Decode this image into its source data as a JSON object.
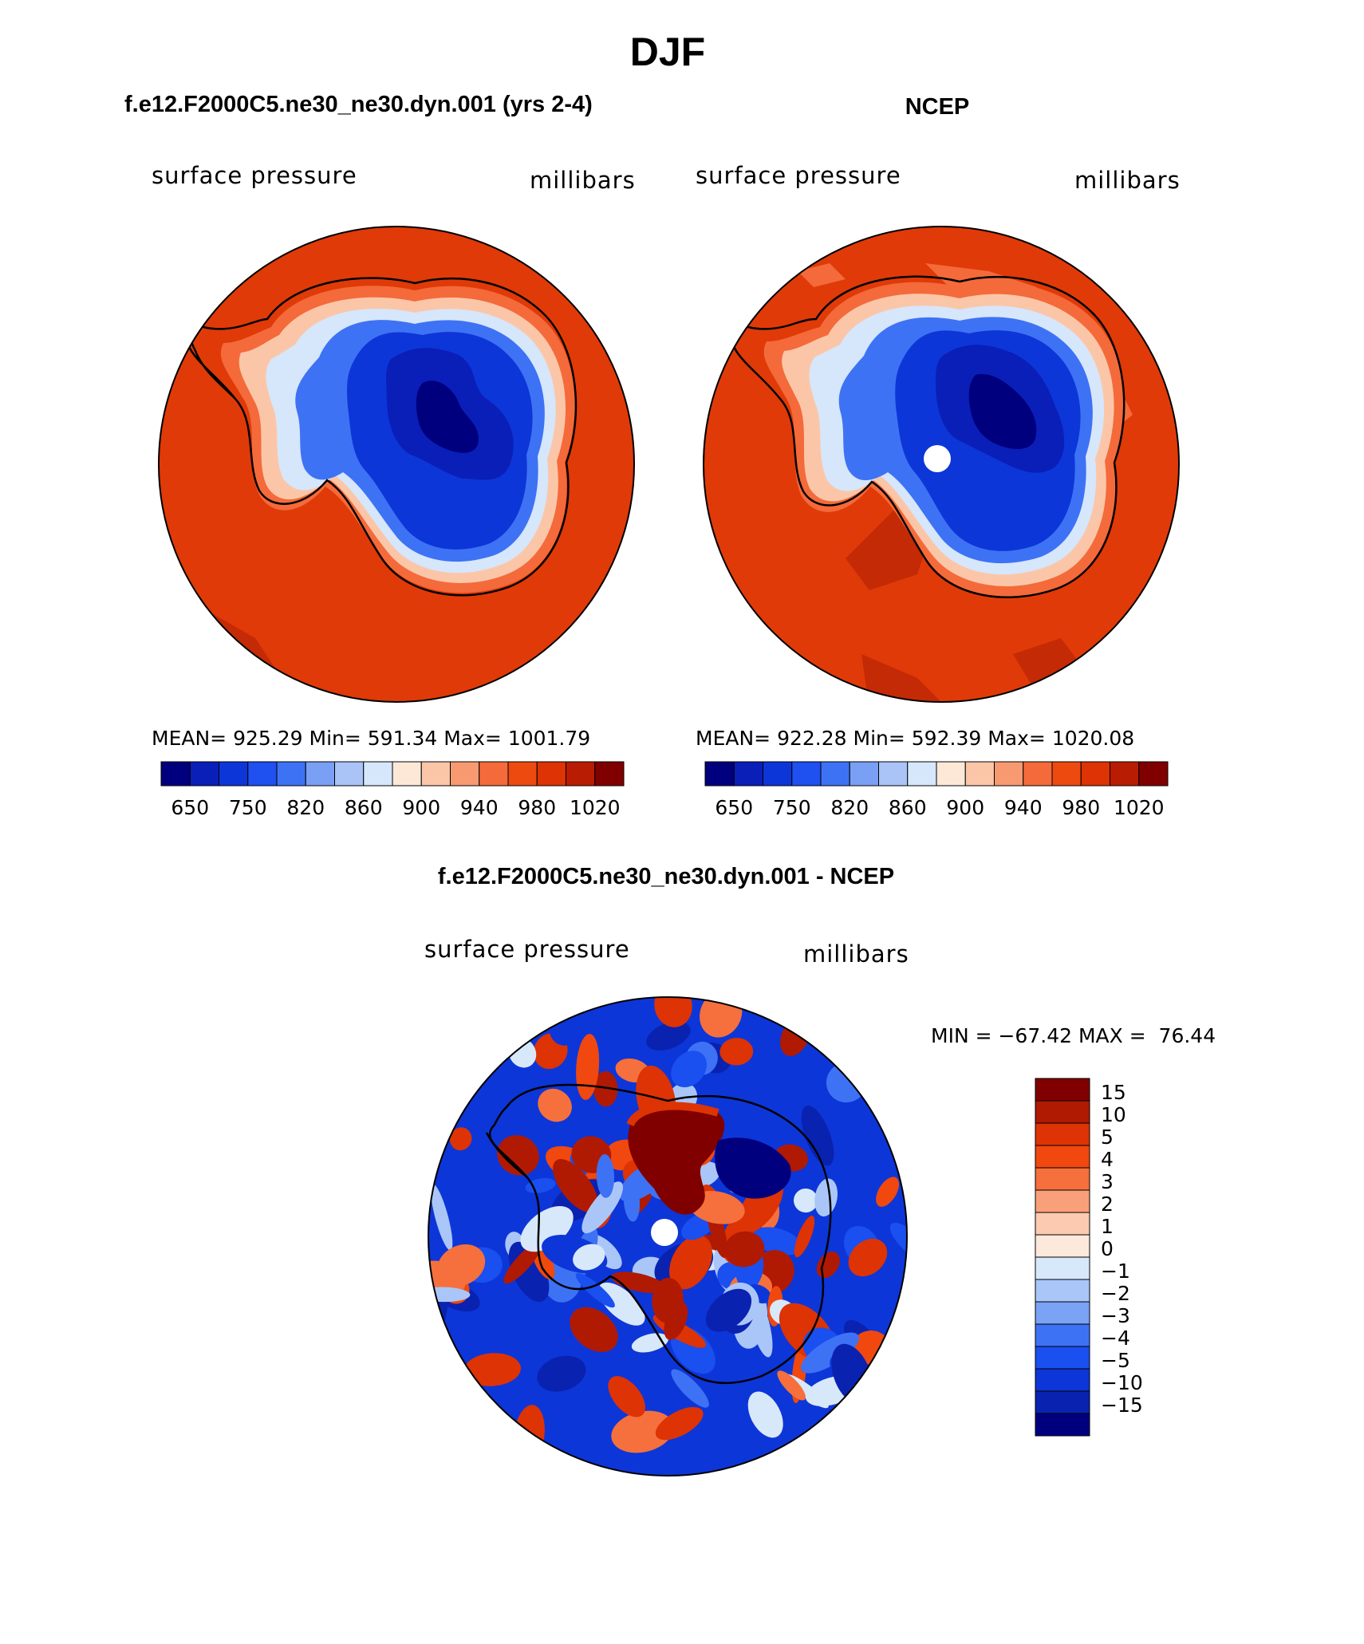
{
  "figure": {
    "title": "DJF",
    "colors": {
      "ocean_high": "#e03a08",
      "ocean_high_dark": "#c42a06",
      "land_low": "#0b2aa8",
      "coast_line": "#000000"
    }
  },
  "panels": [
    {
      "header": "f.e12.F2000C5.ne30_ne30.dyn.001 (yrs 2-4)",
      "left_label": "surface pressure",
      "right_label": "millibars",
      "stats": {
        "mean_label": "MEAN=",
        "mean": "925.29",
        "min_label": "Min=",
        "min": "591.34",
        "max_label": "Max=",
        "max": "1001.79"
      },
      "colorbar": {
        "tick_labels": [
          "650",
          "750",
          "820",
          "860",
          "900",
          "940",
          "980",
          "1020"
        ],
        "colors": [
          "#00007f",
          "#0a1fb8",
          "#0d36d8",
          "#1f50f0",
          "#3e72f5",
          "#7aa0f5",
          "#aac4f8",
          "#d6e6fb",
          "#fde8d8",
          "#fbc6a8",
          "#f79a72",
          "#f46a3a",
          "#ed4a10",
          "#dd3305",
          "#b81c03",
          "#800000"
        ]
      },
      "has_pole_hole": false
    },
    {
      "header": "NCEP",
      "left_label": "surface pressure",
      "right_label": "millibars",
      "stats": {
        "mean_label": "MEAN=",
        "mean": "922.28",
        "min_label": "Min=",
        "min": "592.39",
        "max_label": "Max=",
        "max": "1020.08"
      },
      "colorbar": {
        "tick_labels": [
          "650",
          "750",
          "820",
          "860",
          "900",
          "940",
          "980",
          "1020"
        ],
        "colors": [
          "#00007f",
          "#0a1fb8",
          "#0d36d8",
          "#1f50f0",
          "#3e72f5",
          "#7aa0f5",
          "#aac4f8",
          "#d6e6fb",
          "#fde8d8",
          "#fbc6a8",
          "#f79a72",
          "#f46a3a",
          "#ed4a10",
          "#dd3305",
          "#b81c03",
          "#800000"
        ]
      },
      "has_pole_hole": true
    }
  ],
  "difference_panel": {
    "header": "f.e12.F2000C5.ne30_ne30.dyn.001 - NCEP",
    "left_label": "surface pressure",
    "right_label": "millibars",
    "min_max_text": "MIN = −67.42 MAX =  76.44",
    "colorbar": {
      "tick_labels": [
        "15",
        "10",
        "5",
        "4",
        "3",
        "2",
        "1",
        "0",
        "−1",
        "−2",
        "−3",
        "−4",
        "−5",
        "−10",
        "−15"
      ],
      "colors": [
        "#800000",
        "#b01a03",
        "#dd3305",
        "#f0480e",
        "#f5703c",
        "#f9a07a",
        "#fccab0",
        "#fde9dc",
        "#d8e8fb",
        "#aac6f8",
        "#7aa2f5",
        "#3e72f5",
        "#1a4ff0",
        "#0d36d8",
        "#0a22b0",
        "#00007f"
      ]
    }
  },
  "chart_data": [
    {
      "type": "heatmap",
      "title": "f.e12.F2000C5.ne30_ne30.dyn.001 (yrs 2-4)",
      "variable": "surface pressure",
      "units": "millibars",
      "projection": "south polar stereographic",
      "mean": 925.29,
      "min": 591.34,
      "max": 1001.79,
      "contour_levels": [
        650,
        700,
        750,
        800,
        820,
        840,
        860,
        880,
        900,
        920,
        940,
        960,
        980,
        1000,
        1020
      ]
    },
    {
      "type": "heatmap",
      "title": "NCEP",
      "variable": "surface pressure",
      "units": "millibars",
      "projection": "south polar stereographic",
      "mean": 922.28,
      "min": 592.39,
      "max": 1020.08,
      "contour_levels": [
        650,
        700,
        750,
        800,
        820,
        840,
        860,
        880,
        900,
        920,
        940,
        960,
        980,
        1000,
        1020
      ]
    },
    {
      "type": "heatmap",
      "title": "f.e12.F2000C5.ne30_ne30.dyn.001 - NCEP",
      "variable": "surface pressure",
      "units": "millibars",
      "projection": "south polar stereographic",
      "min": -67.42,
      "max": 76.44,
      "contour_levels": [
        -15,
        -10,
        -5,
        -4,
        -3,
        -2,
        -1,
        0,
        1,
        2,
        3,
        4,
        5,
        10,
        15
      ]
    }
  ]
}
